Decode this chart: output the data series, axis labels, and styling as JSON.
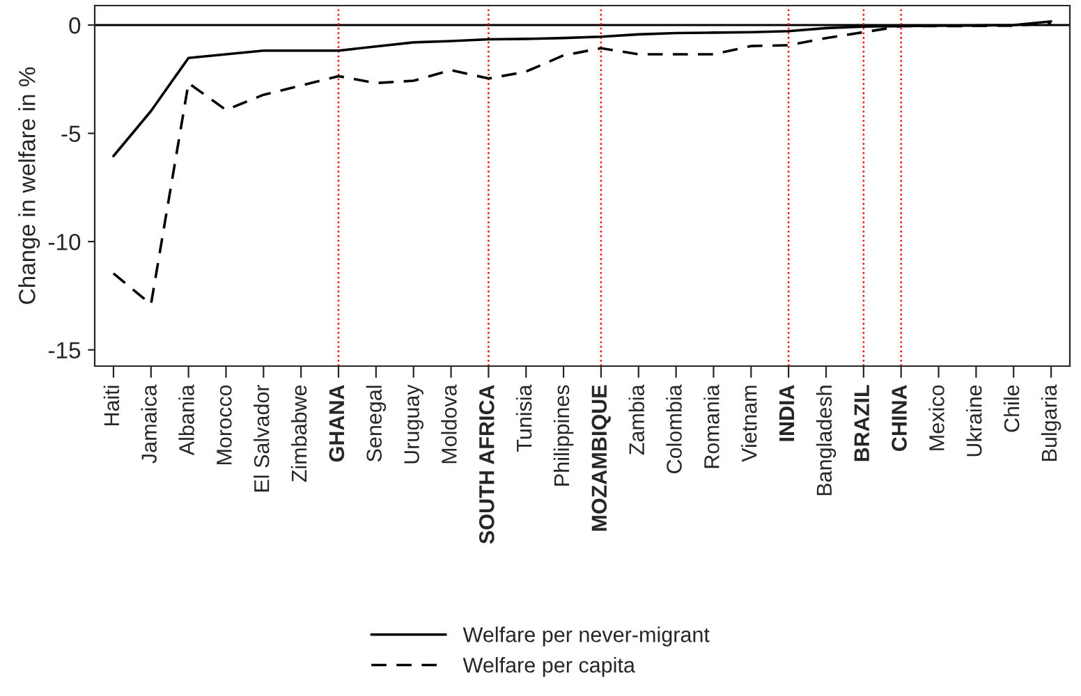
{
  "chart_data": {
    "type": "line",
    "ylabel": "Change in welfare in %",
    "categories": [
      "Haiti",
      "Jamaica",
      "Albania",
      "Morocco",
      "El Salvador",
      "Zimbabwe",
      "GHANA",
      "Senegal",
      "Uruguay",
      "Moldova",
      "SOUTH AFRICA",
      "Tunisia",
      "Philippines",
      "MOZAMBIQUE",
      "Zambia",
      "Colombia",
      "Romania",
      "Vietnam",
      "INDIA",
      "Bangladesh",
      "BRAZIL",
      "CHINA",
      "Mexico",
      "Ukraine",
      "Chile",
      "Bulgaria"
    ],
    "series": [
      {
        "name": "Welfare per never-migrant",
        "color": "#000000",
        "line_style": "solid",
        "values": [
          -6.05,
          -3.97,
          -1.52,
          -1.35,
          -1.18,
          -1.18,
          -1.18,
          -0.99,
          -0.8,
          -0.74,
          -0.66,
          -0.64,
          -0.6,
          -0.54,
          -0.43,
          -0.37,
          -0.35,
          -0.33,
          -0.28,
          -0.14,
          -0.07,
          -0.05,
          -0.03,
          -0.02,
          0.0,
          0.17
        ]
      },
      {
        "name": "Welfare per capita",
        "color": "#000000",
        "line_style": "dashed",
        "values": [
          -11.47,
          -12.9,
          -2.68,
          -3.92,
          -3.22,
          -2.79,
          -2.36,
          -2.68,
          -2.57,
          -2.08,
          -2.47,
          -2.15,
          -1.4,
          -1.07,
          -1.35,
          -1.35,
          -1.35,
          -0.97,
          -0.93,
          -0.6,
          -0.33,
          -0.05,
          -0.05,
          -0.04,
          -0.03,
          0.1
        ]
      }
    ],
    "ylim": [
      -15.75,
      0.9
    ],
    "yticks": [
      {
        "value": -15,
        "label": "-15"
      },
      {
        "value": -10,
        "label": "-10"
      },
      {
        "value": -5,
        "label": "-5"
      },
      0
    ],
    "ref_lines": [
      {
        "axis": "y",
        "value": 0,
        "color": "#000000",
        "line_style": "solid"
      },
      {
        "axis": "x",
        "value": "GHANA",
        "color": "#ff0000",
        "line_style": "dotted"
      },
      {
        "axis": "x",
        "value": "SOUTH AFRICA",
        "color": "#ff0000",
        "line_style": "dotted"
      },
      {
        "axis": "x",
        "value": "MOZAMBIQUE",
        "color": "#ff0000",
        "line_style": "dotted"
      },
      {
        "axis": "x",
        "value": "INDIA",
        "color": "#ff0000",
        "line_style": "dotted"
      },
      {
        "axis": "x",
        "value": "BRAZIL",
        "color": "#ff0000",
        "line_style": "dotted"
      },
      {
        "axis": "x",
        "value": "CHINA",
        "color": "#ff0000",
        "line_style": "dotted"
      }
    ],
    "grid": false,
    "legend": "bottom",
    "marker": "none"
  }
}
